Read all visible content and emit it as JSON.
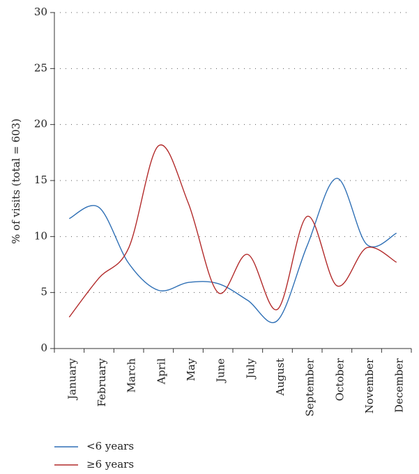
{
  "chart_data": {
    "type": "line",
    "title": "",
    "xlabel": "",
    "ylabel": "% of visits (total = 603)",
    "ylim": [
      0,
      30
    ],
    "yticks": [
      0,
      5,
      10,
      15,
      20,
      25,
      30
    ],
    "grid": "horizontal dotted",
    "legend_position": "bottom-left",
    "categories": [
      "January",
      "February",
      "March",
      "April",
      "May",
      "June",
      "July",
      "August",
      "September",
      "October",
      "November",
      "December"
    ],
    "series": [
      {
        "name": "<6 years",
        "color": "#2e6fb5",
        "values": [
          11.6,
          12.6,
          7.6,
          5.2,
          5.9,
          5.8,
          4.3,
          2.5,
          9.2,
          15.2,
          9.3,
          10.3
        ]
      },
      {
        "name": "≥6 years",
        "color": "#b22a2a",
        "values": [
          2.8,
          6.3,
          9.0,
          18.1,
          13.0,
          5.0,
          8.4,
          3.5,
          11.8,
          5.6,
          9.0,
          7.7
        ]
      }
    ]
  }
}
